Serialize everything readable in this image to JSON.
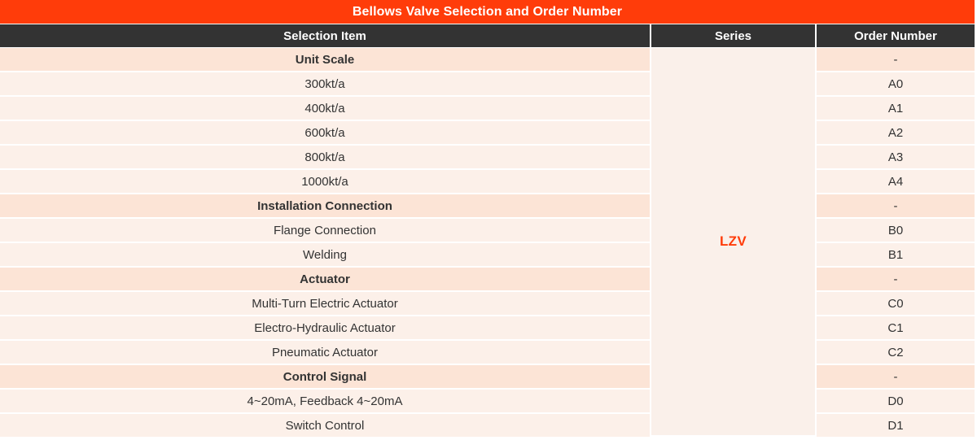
{
  "title": "Bellows Valve Selection and Order Number",
  "header": {
    "selection_item": "Selection Item",
    "series": "Series",
    "order_number": "Order Number"
  },
  "series_value": "LZV",
  "rows": [
    {
      "item": "Unit Scale",
      "order": "-",
      "type": "section"
    },
    {
      "item": "300kt/a",
      "order": "A0",
      "type": "data"
    },
    {
      "item": "400kt/a",
      "order": "A1",
      "type": "data"
    },
    {
      "item": "600kt/a",
      "order": "A2",
      "type": "data"
    },
    {
      "item": "800kt/a",
      "order": "A3",
      "type": "data"
    },
    {
      "item": "1000kt/a",
      "order": "A4",
      "type": "data"
    },
    {
      "item": "Installation Connection",
      "order": "-",
      "type": "section"
    },
    {
      "item": "Flange Connection",
      "order": "B0",
      "type": "data"
    },
    {
      "item": "Welding",
      "order": "B1",
      "type": "data"
    },
    {
      "item": "Actuator",
      "order": "-",
      "type": "section"
    },
    {
      "item": "Multi-Turn Electric Actuator",
      "order": "C0",
      "type": "data"
    },
    {
      "item": "Electro-Hydraulic Actuator",
      "order": "C1",
      "type": "data"
    },
    {
      "item": "Pneumatic Actuator",
      "order": "C2",
      "type": "data"
    },
    {
      "item": "Control Signal",
      "order": "-",
      "type": "section"
    },
    {
      "item": "4~20mA, Feedback 4~20mA",
      "order": "D0",
      "type": "data"
    },
    {
      "item": "Switch Control",
      "order": "D1",
      "type": "data"
    }
  ],
  "colors": {
    "title_bg": "#FF3C0A",
    "header_bg": "#333333",
    "section_row_bg": "#FCE4D6",
    "data_row_bg": "#FCF0E9",
    "series_bg": "#FAF0EA",
    "series_text": "#FF3C0A",
    "body_text": "#333333",
    "header_text": "#FFFFFF"
  }
}
